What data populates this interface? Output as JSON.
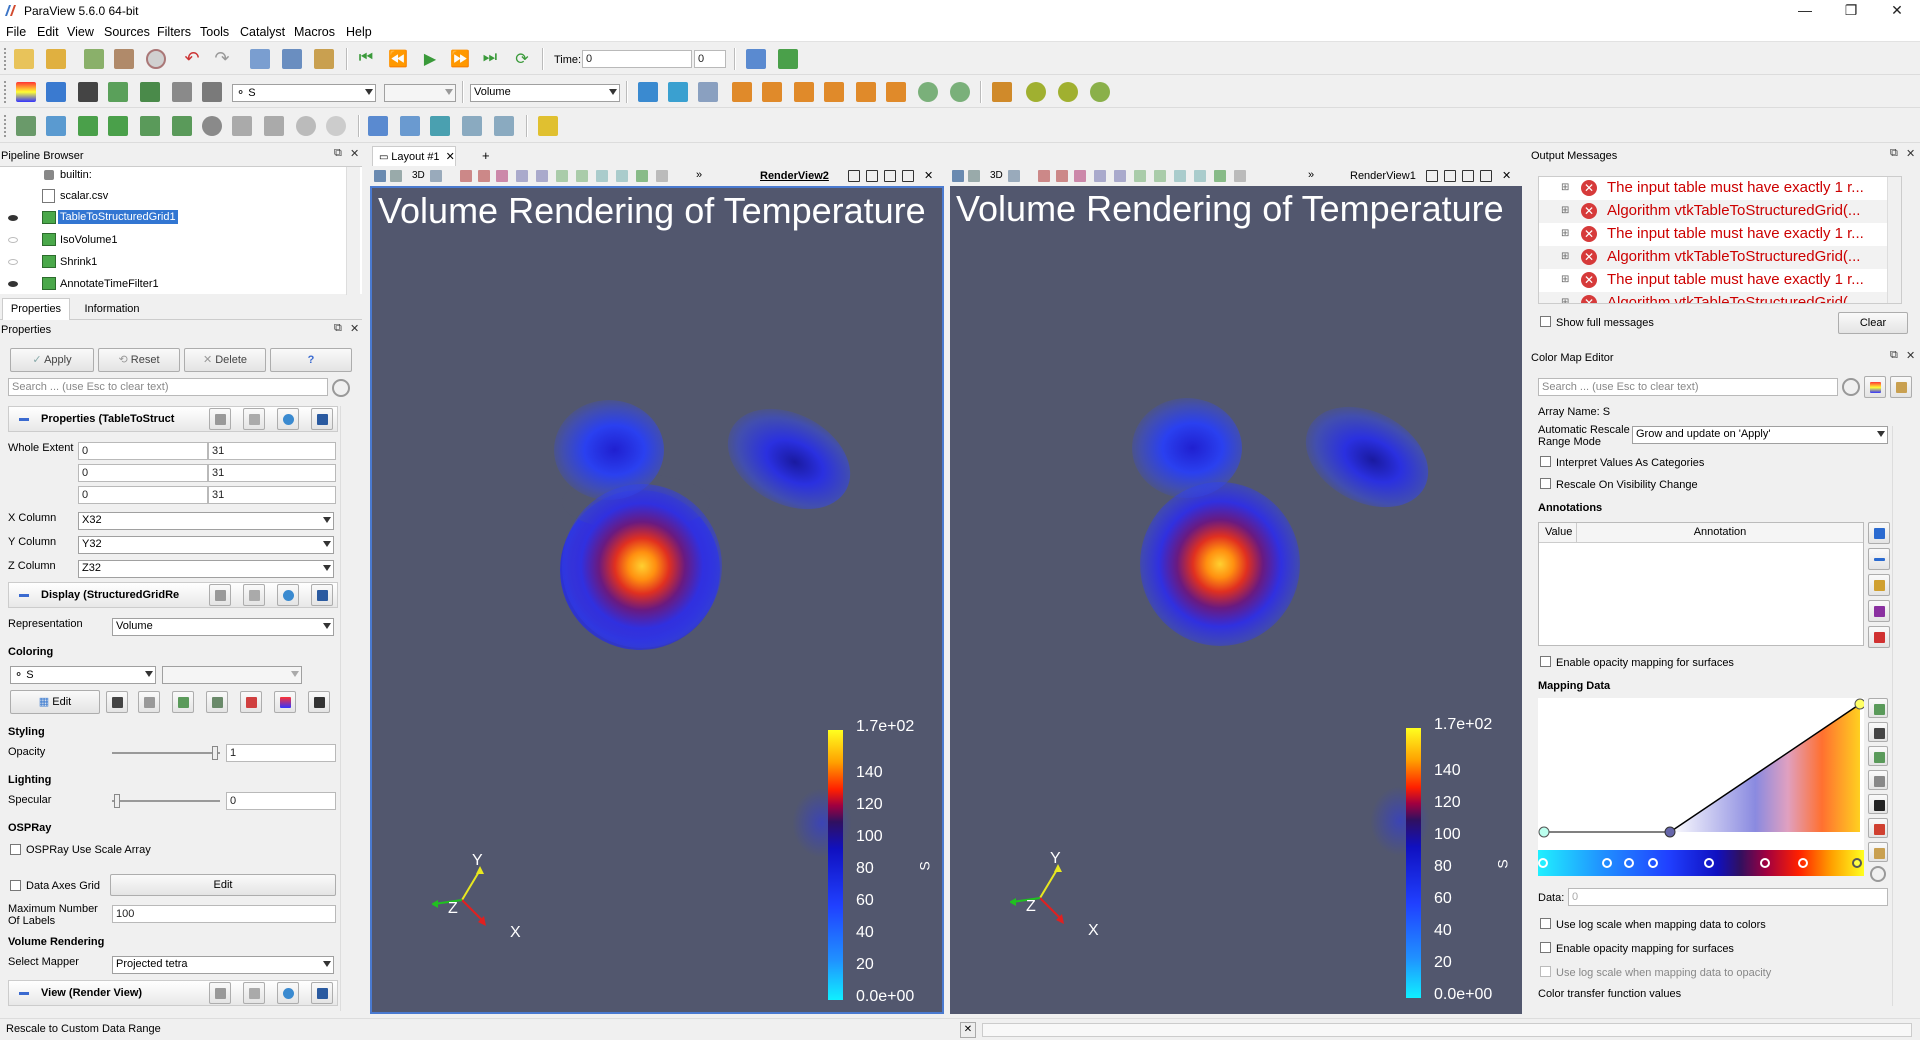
{
  "window": {
    "title": "ParaView 5.6.0 64-bit",
    "min": "—",
    "max": "❐",
    "close": "✕"
  },
  "menu": [
    "File",
    "Edit",
    "View",
    "Sources",
    "Filters",
    "Tools",
    "Catalyst",
    "Macros",
    "Help"
  ],
  "toolbar": {
    "time_label": "Time:",
    "time_value": "0",
    "time_index": "0",
    "array_combo": "S",
    "representation_combo": "Volume"
  },
  "pipeline": {
    "title": "Pipeline Browser",
    "items": [
      {
        "label": "builtin:"
      },
      {
        "label": "scalar.csv"
      },
      {
        "label": "TableToStructuredGrid1"
      },
      {
        "label": "IsoVolume1"
      },
      {
        "label": "Shrink1"
      },
      {
        "label": "AnnotateTimeFilter1"
      }
    ]
  },
  "tabs": {
    "properties": "Properties",
    "information": "Information"
  },
  "properties": {
    "title": "Properties",
    "apply": "Apply",
    "reset": "Reset",
    "delete": "Delete",
    "help": "?",
    "search_placeholder": "Search ... (use Esc to clear text)",
    "section_props": "Properties (TableToStruct",
    "whole_extent_label": "Whole Extent",
    "extent": [
      [
        "0",
        "31"
      ],
      [
        "0",
        "31"
      ],
      [
        "0",
        "31"
      ]
    ],
    "x_column_label": "X Column",
    "x_column": "X32",
    "y_column_label": "Y Column",
    "y_column": "Y32",
    "z_column_label": "Z Column",
    "z_column": "Z32",
    "section_display": "Display (StructuredGridRe",
    "representation_label": "Representation",
    "representation": "Volume",
    "coloring_label": "Coloring",
    "coloring_array": "S",
    "edit": "Edit",
    "styling_label": "Styling",
    "opacity_label": "Opacity",
    "opacity": "1",
    "lighting_label": "Lighting",
    "specular_label": "Specular",
    "specular": "0",
    "ospray_label": "OSPRay",
    "ospray_scale": "OSPRay Use Scale Array",
    "data_axes_grid": "Data Axes Grid",
    "data_axes_edit": "Edit",
    "max_labels_label": "Maximum Number Of Labels",
    "max_labels": "100",
    "volume_rendering_label": "Volume Rendering",
    "select_mapper_label": "Select Mapper",
    "select_mapper": "Projected tetra",
    "section_view": "View (Render View)"
  },
  "layout": {
    "tab": "Layout #1",
    "add": "+"
  },
  "views": [
    {
      "name": "RenderView2",
      "title": "Volume Rendering of Temperature",
      "active": true
    },
    {
      "name": "RenderView1",
      "title": "Volume Rendering of Temperature",
      "active": false
    }
  ],
  "colorbar": {
    "labels": [
      "1.7e+02",
      "140",
      "120",
      "100",
      "80",
      "60",
      "40",
      "20",
      "0.0e+00"
    ],
    "title": "S"
  },
  "axes": {
    "x": "X",
    "y": "Y",
    "z": "Z"
  },
  "output": {
    "title": "Output Messages",
    "messages": [
      "The input table must have exactly 1 r...",
      "Algorithm vtkTableToStructuredGrid(...",
      "The input table must have exactly 1 r...",
      "Algorithm vtkTableToStructuredGrid(...",
      "The input table must have exactly 1 r...",
      "Algorithm vtkTableToStructuredGrid(..."
    ],
    "show_full": "Show full messages",
    "clear": "Clear"
  },
  "colormap": {
    "title": "Color Map Editor",
    "search_placeholder": "Search ... (use Esc to clear text)",
    "array_name": "Array Name: S",
    "rescale_label": "Automatic Rescale Range Mode",
    "rescale_value": "Grow and update on 'Apply'",
    "interpret": "Interpret Values As Categories",
    "rescale_visibility": "Rescale On Visibility Change",
    "annotations": "Annotations",
    "col_value": "Value",
    "col_annotation": "Annotation",
    "opacity_mapping": "Enable opacity mapping for surfaces",
    "mapping_data": "Mapping Data",
    "data_label": "Data:",
    "data_value": "0",
    "log_colors": "Use log scale when mapping data to colors",
    "opacity_mapping2": "Enable opacity mapping for surfaces",
    "log_opacity": "Use log scale when mapping data to opacity",
    "transfer_values": "Color transfer function values"
  },
  "status": {
    "text": "Rescale to Custom Data Range"
  }
}
